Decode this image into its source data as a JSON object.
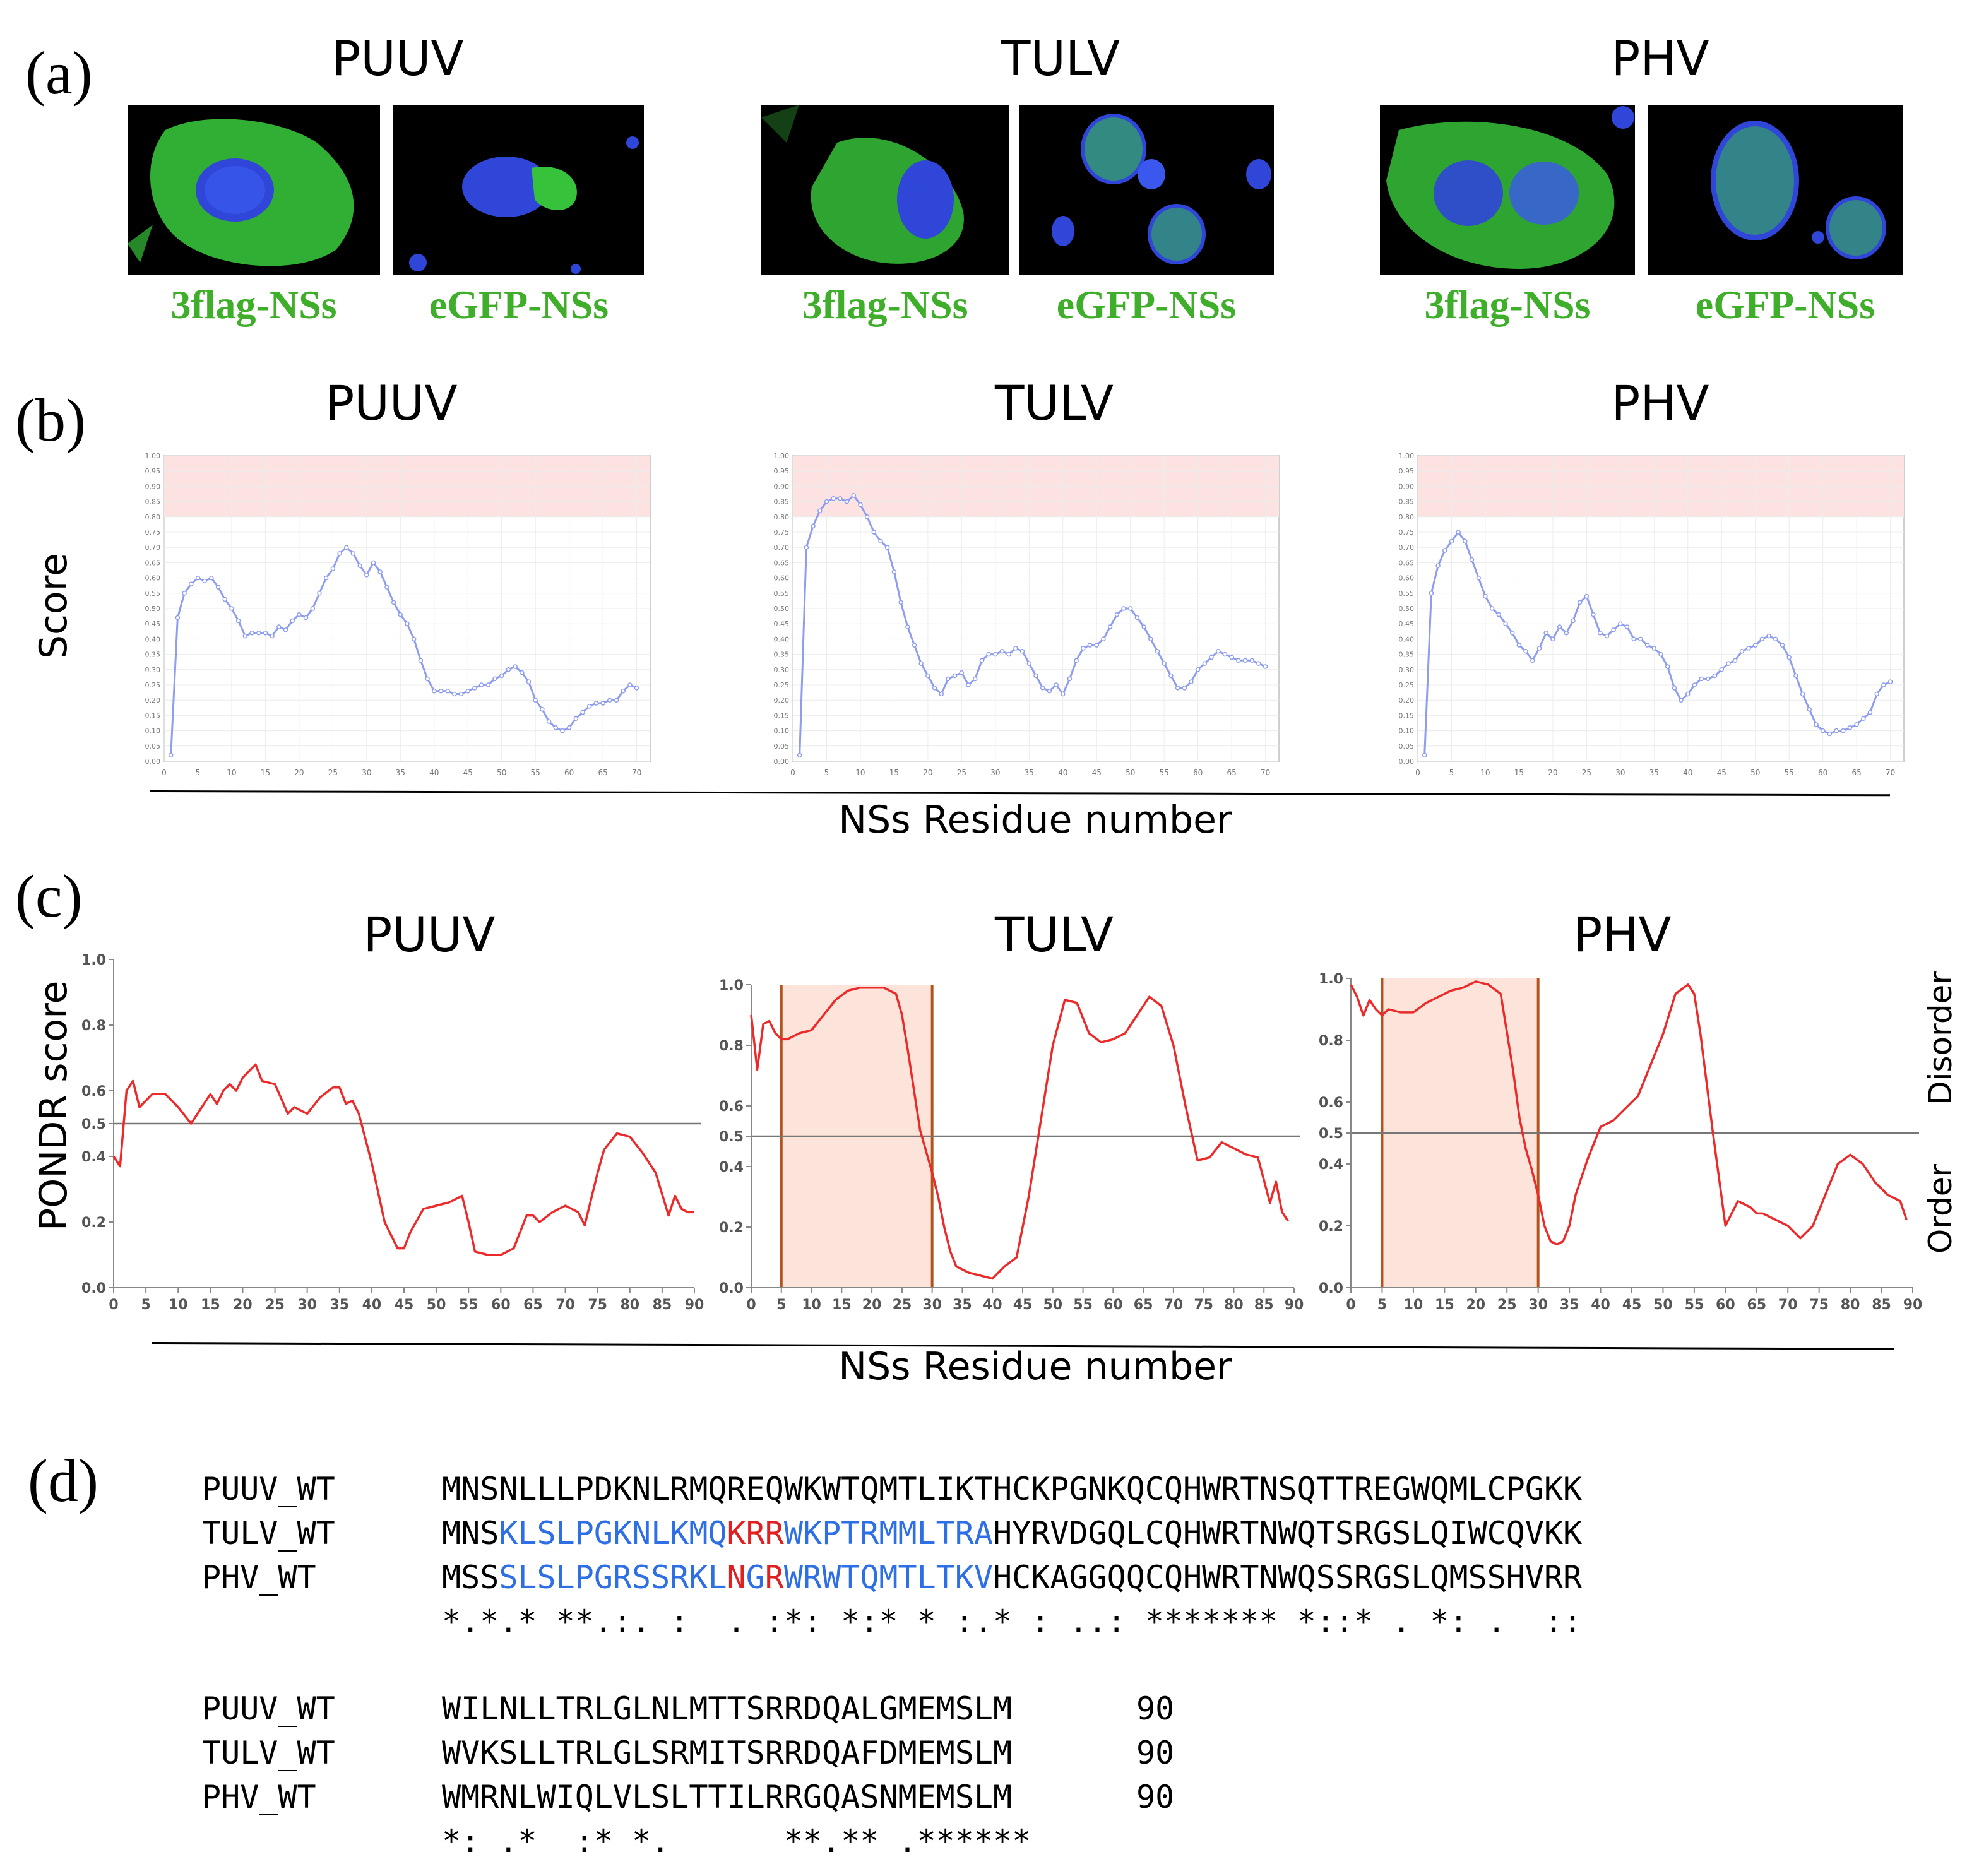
{
  "panels": {
    "a": {
      "label": "(a)",
      "viruses": [
        {
          "name": "PUUV",
          "labels": [
            "3flag-NSs",
            "eGFP-NSs"
          ]
        },
        {
          "name": "TULV",
          "labels": [
            "3flag-NSs",
            "eGFP-NSs"
          ]
        },
        {
          "name": "PHV",
          "labels": [
            "3flag-NSs",
            "eGFP-NSs"
          ]
        }
      ]
    },
    "b": {
      "label": "(b)",
      "titles": [
        "PUUV",
        "TULV",
        "PHV"
      ],
      "ylabel": "Score",
      "xlabel": "NSs Residue number"
    },
    "c": {
      "label": "(c)",
      "titles": [
        "PUUV",
        "TULV",
        "PHV"
      ],
      "ylabel": "PONDR score",
      "xlabel": "NSs Residue number",
      "right_top": "Disorder",
      "right_bottom": "Order"
    },
    "d": {
      "label": "(d)"
    }
  },
  "colors": {
    "label_green": "#3fae2a",
    "score_line": "#8e9df0",
    "pondr_line": "#ec2a2a",
    "highlight_region": "#fde4da",
    "region_line": "#b5531f",
    "blue_residue": "#2f6fe6",
    "red_residue": "#e02020"
  },
  "chart_data": [
    {
      "id": "b-PUUV",
      "type": "line",
      "title": "PUUV",
      "ylabel": "Score",
      "xlabel": "NSs Residue number",
      "xlim": [
        0,
        72
      ],
      "ylim": [
        0,
        1.0
      ],
      "x_ticks": [
        "0",
        "5",
        "10",
        "15",
        "20",
        "25",
        "30",
        "35",
        "40",
        "45",
        "50",
        "55",
        "60",
        "65",
        "70"
      ],
      "y_ticks": [
        "0.00",
        "0.05",
        "0.10",
        "0.15",
        "0.20",
        "0.25",
        "0.30",
        "0.35",
        "0.40",
        "0.45",
        "0.50",
        "0.55",
        "0.60",
        "0.65",
        "0.70",
        "0.75",
        "0.80",
        "0.85",
        "0.90",
        "0.95",
        "1.00"
      ],
      "shaded_band": [
        0.8,
        1.0
      ],
      "x": [
        1,
        2,
        3,
        4,
        5,
        6,
        7,
        8,
        9,
        10,
        11,
        12,
        13,
        14,
        15,
        16,
        17,
        18,
        19,
        20,
        21,
        22,
        23,
        24,
        25,
        26,
        27,
        28,
        29,
        30,
        31,
        32,
        33,
        34,
        35,
        36,
        37,
        38,
        39,
        40,
        41,
        42,
        43,
        44,
        45,
        46,
        47,
        48,
        49,
        50,
        51,
        52,
        53,
        54,
        55,
        56,
        57,
        58,
        59,
        60,
        61,
        62,
        63,
        64,
        65,
        66,
        67,
        68,
        69,
        70
      ],
      "y": [
        0.02,
        0.47,
        0.55,
        0.58,
        0.6,
        0.59,
        0.6,
        0.57,
        0.53,
        0.5,
        0.46,
        0.41,
        0.42,
        0.42,
        0.42,
        0.41,
        0.44,
        0.43,
        0.46,
        0.48,
        0.47,
        0.5,
        0.55,
        0.6,
        0.63,
        0.68,
        0.7,
        0.68,
        0.64,
        0.61,
        0.65,
        0.62,
        0.57,
        0.52,
        0.48,
        0.45,
        0.4,
        0.33,
        0.27,
        0.23,
        0.23,
        0.23,
        0.22,
        0.22,
        0.23,
        0.24,
        0.25,
        0.25,
        0.27,
        0.28,
        0.3,
        0.31,
        0.29,
        0.26,
        0.2,
        0.17,
        0.13,
        0.11,
        0.1,
        0.11,
        0.14,
        0.16,
        0.18,
        0.19,
        0.19,
        0.2,
        0.2,
        0.23,
        0.25,
        0.24
      ]
    },
    {
      "id": "b-TULV",
      "type": "line",
      "title": "TULV",
      "ylabel": "Score",
      "xlabel": "NSs Residue number",
      "xlim": [
        0,
        72
      ],
      "ylim": [
        0,
        1.0
      ],
      "x_ticks": [
        "0",
        "5",
        "10",
        "15",
        "20",
        "25",
        "30",
        "35",
        "40",
        "45",
        "50",
        "55",
        "60",
        "65",
        "70"
      ],
      "y_ticks": [
        "0.00",
        "0.05",
        "0.10",
        "0.15",
        "0.20",
        "0.25",
        "0.30",
        "0.35",
        "0.40",
        "0.45",
        "0.50",
        "0.55",
        "0.60",
        "0.65",
        "0.70",
        "0.75",
        "0.80",
        "0.85",
        "0.90",
        "0.95",
        "1.00"
      ],
      "shaded_band": [
        0.8,
        1.0
      ],
      "x": [
        1,
        2,
        3,
        4,
        5,
        6,
        7,
        8,
        9,
        10,
        11,
        12,
        13,
        14,
        15,
        16,
        17,
        18,
        19,
        20,
        21,
        22,
        23,
        24,
        25,
        26,
        27,
        28,
        29,
        30,
        31,
        32,
        33,
        34,
        35,
        36,
        37,
        38,
        39,
        40,
        41,
        42,
        43,
        44,
        45,
        46,
        47,
        48,
        49,
        50,
        51,
        52,
        53,
        54,
        55,
        56,
        57,
        58,
        59,
        60,
        61,
        62,
        63,
        64,
        65,
        66,
        67,
        68,
        69,
        70
      ],
      "y": [
        0.02,
        0.7,
        0.77,
        0.82,
        0.85,
        0.86,
        0.86,
        0.85,
        0.87,
        0.84,
        0.8,
        0.75,
        0.72,
        0.7,
        0.62,
        0.52,
        0.44,
        0.38,
        0.32,
        0.28,
        0.24,
        0.22,
        0.27,
        0.28,
        0.29,
        0.25,
        0.27,
        0.33,
        0.35,
        0.35,
        0.36,
        0.35,
        0.37,
        0.36,
        0.32,
        0.28,
        0.24,
        0.23,
        0.25,
        0.22,
        0.27,
        0.33,
        0.37,
        0.38,
        0.38,
        0.4,
        0.44,
        0.48,
        0.5,
        0.5,
        0.47,
        0.44,
        0.4,
        0.36,
        0.32,
        0.28,
        0.24,
        0.24,
        0.26,
        0.3,
        0.32,
        0.34,
        0.36,
        0.35,
        0.34,
        0.33,
        0.33,
        0.33,
        0.32,
        0.31
      ]
    },
    {
      "id": "b-PHV",
      "type": "line",
      "title": "PHV",
      "ylabel": "Score",
      "xlabel": "NSs Residue number",
      "xlim": [
        0,
        72
      ],
      "ylim": [
        0,
        1.0
      ],
      "x_ticks": [
        "0",
        "5",
        "10",
        "15",
        "20",
        "25",
        "30",
        "35",
        "40",
        "45",
        "50",
        "55",
        "60",
        "65",
        "70"
      ],
      "y_ticks": [
        "0.00",
        "0.05",
        "0.10",
        "0.15",
        "0.20",
        "0.25",
        "0.30",
        "0.35",
        "0.40",
        "0.45",
        "0.50",
        "0.55",
        "0.60",
        "0.65",
        "0.70",
        "0.75",
        "0.80",
        "0.85",
        "0.90",
        "0.95",
        "1.00"
      ],
      "shaded_band": [
        0.8,
        1.0
      ],
      "x": [
        1,
        2,
        3,
        4,
        5,
        6,
        7,
        8,
        9,
        10,
        11,
        12,
        13,
        14,
        15,
        16,
        17,
        18,
        19,
        20,
        21,
        22,
        23,
        24,
        25,
        26,
        27,
        28,
        29,
        30,
        31,
        32,
        33,
        34,
        35,
        36,
        37,
        38,
        39,
        40,
        41,
        42,
        43,
        44,
        45,
        46,
        47,
        48,
        49,
        50,
        51,
        52,
        53,
        54,
        55,
        56,
        57,
        58,
        59,
        60,
        61,
        62,
        63,
        64,
        65,
        66,
        67,
        68,
        69,
        70
      ],
      "y": [
        0.02,
        0.55,
        0.64,
        0.69,
        0.72,
        0.75,
        0.72,
        0.66,
        0.6,
        0.54,
        0.5,
        0.48,
        0.45,
        0.42,
        0.38,
        0.36,
        0.33,
        0.37,
        0.42,
        0.4,
        0.44,
        0.42,
        0.46,
        0.52,
        0.54,
        0.48,
        0.42,
        0.41,
        0.43,
        0.45,
        0.44,
        0.4,
        0.4,
        0.38,
        0.37,
        0.35,
        0.31,
        0.24,
        0.2,
        0.22,
        0.25,
        0.27,
        0.27,
        0.28,
        0.3,
        0.32,
        0.33,
        0.36,
        0.37,
        0.38,
        0.4,
        0.41,
        0.4,
        0.38,
        0.34,
        0.28,
        0.22,
        0.17,
        0.12,
        0.1,
        0.09,
        0.1,
        0.1,
        0.11,
        0.12,
        0.14,
        0.16,
        0.22,
        0.25,
        0.26
      ]
    },
    {
      "id": "c-PUUV",
      "type": "line",
      "title": "PUUV",
      "ylabel": "PONDR score",
      "xlabel": "NSs Residue number",
      "xlim": [
        0,
        90
      ],
      "ylim": [
        0,
        1.0
      ],
      "threshold": 0.5,
      "x_ticks": [
        "0",
        "5",
        "10",
        "15",
        "20",
        "25",
        "30",
        "35",
        "40",
        "45",
        "50",
        "55",
        "60",
        "65",
        "70",
        "75",
        "80",
        "85",
        "90"
      ],
      "y_ticks": [
        "0.0",
        "0.2",
        "0.4",
        "0.5",
        "0.6",
        "0.8",
        "1.0"
      ],
      "x": [
        0,
        1,
        2,
        3,
        4,
        5,
        6,
        8,
        10,
        12,
        13,
        15,
        16,
        17,
        18,
        19,
        20,
        22,
        23,
        25,
        27,
        28,
        30,
        32,
        34,
        35,
        36,
        37,
        38,
        40,
        42,
        44,
        45,
        46,
        48,
        50,
        52,
        54,
        55,
        56,
        58,
        60,
        62,
        64,
        65,
        66,
        68,
        70,
        72,
        73,
        74,
        75,
        76,
        78,
        80,
        82,
        84,
        86,
        87,
        88,
        89,
        90
      ],
      "y": [
        0.4,
        0.37,
        0.6,
        0.63,
        0.55,
        0.57,
        0.59,
        0.59,
        0.55,
        0.5,
        0.53,
        0.59,
        0.56,
        0.6,
        0.62,
        0.6,
        0.64,
        0.68,
        0.63,
        0.62,
        0.53,
        0.55,
        0.53,
        0.58,
        0.61,
        0.61,
        0.56,
        0.57,
        0.53,
        0.38,
        0.2,
        0.12,
        0.12,
        0.17,
        0.24,
        0.25,
        0.26,
        0.28,
        0.2,
        0.11,
        0.1,
        0.1,
        0.12,
        0.22,
        0.22,
        0.2,
        0.23,
        0.25,
        0.23,
        0.19,
        0.27,
        0.35,
        0.42,
        0.47,
        0.46,
        0.41,
        0.35,
        0.22,
        0.28,
        0.24,
        0.23,
        0.23
      ]
    },
    {
      "id": "c-TULV",
      "type": "line",
      "title": "TULV",
      "ylabel": "PONDR score",
      "xlabel": "NSs Residue number",
      "xlim": [
        0,
        90
      ],
      "ylim": [
        0,
        1.0
      ],
      "threshold": 0.5,
      "highlight_range": [
        5,
        30
      ],
      "x_ticks": [
        "0",
        "5",
        "10",
        "15",
        "20",
        "25",
        "30",
        "35",
        "40",
        "45",
        "50",
        "55",
        "60",
        "65",
        "70",
        "75",
        "80",
        "85",
        "90"
      ],
      "y_ticks": [
        "0.0",
        "0.2",
        "0.4",
        "0.5",
        "0.6",
        "0.8",
        "1.0"
      ],
      "x": [
        0,
        1,
        2,
        3,
        4,
        5,
        6,
        8,
        10,
        12,
        14,
        16,
        18,
        20,
        22,
        24,
        25,
        26,
        27,
        28,
        29,
        30,
        31,
        32,
        33,
        34,
        36,
        38,
        40,
        42,
        44,
        46,
        48,
        50,
        52,
        54,
        56,
        58,
        60,
        62,
        64,
        66,
        68,
        70,
        72,
        74,
        76,
        78,
        80,
        82,
        84,
        86,
        87,
        88,
        89
      ],
      "y": [
        0.9,
        0.72,
        0.87,
        0.88,
        0.84,
        0.82,
        0.82,
        0.84,
        0.85,
        0.9,
        0.95,
        0.98,
        0.99,
        0.99,
        0.99,
        0.97,
        0.9,
        0.78,
        0.65,
        0.52,
        0.45,
        0.38,
        0.3,
        0.2,
        0.12,
        0.07,
        0.05,
        0.04,
        0.03,
        0.07,
        0.1,
        0.3,
        0.55,
        0.8,
        0.95,
        0.94,
        0.84,
        0.81,
        0.82,
        0.84,
        0.9,
        0.96,
        0.93,
        0.8,
        0.6,
        0.42,
        0.43,
        0.48,
        0.46,
        0.44,
        0.43,
        0.28,
        0.35,
        0.25,
        0.22
      ]
    },
    {
      "id": "c-PHV",
      "type": "line",
      "title": "PHV",
      "ylabel": "PONDR score",
      "xlabel": "NSs Residue number",
      "xlim": [
        0,
        90
      ],
      "ylim": [
        0,
        1.0
      ],
      "threshold": 0.5,
      "highlight_range": [
        5,
        30
      ],
      "x_ticks": [
        "0",
        "5",
        "10",
        "15",
        "20",
        "25",
        "30",
        "35",
        "40",
        "45",
        "50",
        "55",
        "60",
        "65",
        "70",
        "75",
        "80",
        "85",
        "90"
      ],
      "y_ticks": [
        "0.0",
        "0.2",
        "0.4",
        "0.5",
        "0.6",
        "0.8",
        "1.0"
      ],
      "x": [
        0,
        1,
        2,
        3,
        4,
        5,
        6,
        8,
        10,
        12,
        14,
        16,
        18,
        20,
        22,
        24,
        26,
        27,
        28,
        29,
        30,
        31,
        32,
        33,
        34,
        35,
        36,
        38,
        40,
        42,
        44,
        46,
        48,
        50,
        52,
        54,
        55,
        56,
        58,
        60,
        62,
        64,
        65,
        66,
        68,
        70,
        72,
        74,
        76,
        78,
        80,
        82,
        84,
        86,
        88,
        89
      ],
      "y": [
        0.98,
        0.94,
        0.88,
        0.93,
        0.9,
        0.88,
        0.9,
        0.89,
        0.89,
        0.92,
        0.94,
        0.96,
        0.97,
        0.99,
        0.98,
        0.95,
        0.7,
        0.55,
        0.45,
        0.38,
        0.3,
        0.2,
        0.15,
        0.14,
        0.15,
        0.2,
        0.3,
        0.42,
        0.52,
        0.54,
        0.58,
        0.62,
        0.72,
        0.82,
        0.95,
        0.98,
        0.95,
        0.82,
        0.5,
        0.2,
        0.28,
        0.26,
        0.24,
        0.24,
        0.22,
        0.2,
        0.16,
        0.2,
        0.3,
        0.4,
        0.43,
        0.4,
        0.34,
        0.3,
        0.28,
        0.22
      ]
    }
  ],
  "alignment": {
    "block1": {
      "rows": [
        {
          "name": "PUUV_WT",
          "segments": [
            {
              "text": "MNSNLLLPDKNLRMQREQWKWTQMTLIKTHCKPGNKQCQHWRTNSQTTREGWQMLCPGKK",
              "color": "black"
            }
          ]
        },
        {
          "name": "TULV_WT",
          "segments": [
            {
              "text": "MNS",
              "color": "black"
            },
            {
              "text": "KLSLPGKNLKMQ",
              "color": "blue"
            },
            {
              "text": "KRR",
              "color": "red"
            },
            {
              "text": "WKPTRMMLTRA",
              "color": "blue"
            },
            {
              "text": "HYRVDGQLCQHWRTNWQTSRGSLQIWCQVKK",
              "color": "black"
            }
          ]
        },
        {
          "name": "PHV_WT",
          "segments": [
            {
              "text": "MSS",
              "color": "black"
            },
            {
              "text": "SLSLPGRSSRKL",
              "color": "blue"
            },
            {
              "text": "N",
              "color": "red"
            },
            {
              "text": "G",
              "color": "blue"
            },
            {
              "text": "R",
              "color": "red"
            },
            {
              "text": "WRWTQMTLTKV",
              "color": "blue"
            },
            {
              "text": "HCKAGGQQCQHWRTNWQSSRGSLQMSSHVRR",
              "color": "black"
            }
          ]
        }
      ],
      "consensus": "*.*.* **.:. :  . :*: *:* * :.* : ..: ******* *::* . *: .  ::"
    },
    "block2": {
      "rows": [
        {
          "name": "PUUV_WT",
          "sequence": "WILNLLTRLGLNLMTTSRRDQALGMEMSLM",
          "count": "90"
        },
        {
          "name": "TULV_WT",
          "sequence": "WVKSLLTRLGLSRMITSRRDQAFDMEMSLM",
          "count": "90"
        },
        {
          "name": "PHV_WT",
          "sequence": "WMRNLWIQLVLSLTTILRRGQASNMEMSLM",
          "count": "90"
        }
      ],
      "consensus": "*: .*  :* *.      **.** .******"
    }
  }
}
